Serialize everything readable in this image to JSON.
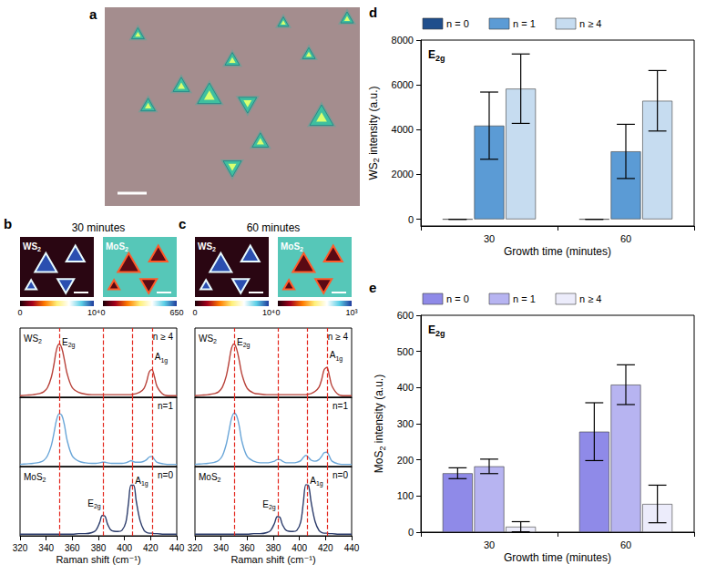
{
  "chart_data": [
    {
      "panel": "a",
      "type": "image"
    },
    {
      "panel": "b",
      "type": "line",
      "title": "30 minutes",
      "maps": [
        {
          "label": "WS2",
          "colorbar": {
            "range": [
              0,
              10000
            ],
            "ticks": [
              0,
              {
                "value": 10000,
                "label": "10⁴"
              }
            ]
          }
        },
        {
          "label": "MoS2",
          "colorbar": {
            "range": [
              0,
              650
            ],
            "ticks": [
              0,
              650
            ]
          }
        }
      ],
      "x_label": "Raman shift (cm⁻¹)",
      "xlim": [
        320,
        440
      ],
      "xticks": [
        320,
        340,
        360,
        380,
        400,
        420,
        440
      ],
      "ylim": [
        0,
        1.3
      ],
      "tick_labels": "x",
      "peak_lines": [
        350,
        384,
        406,
        421
      ],
      "x": [
        320,
        325,
        330,
        335,
        338,
        341,
        344,
        346,
        348,
        350,
        352,
        354,
        356,
        360,
        365,
        370,
        375,
        378,
        381,
        383,
        385,
        387,
        390,
        395,
        398,
        401,
        403,
        405,
        407,
        409,
        412,
        415,
        417,
        419,
        421,
        423,
        425,
        430,
        435,
        440
      ],
      "series": [
        {
          "name": "n ≥ 4",
          "material": "WS2",
          "color": "#b8423a",
          "values": [
            0.03,
            0.04,
            0.05,
            0.07,
            0.1,
            0.18,
            0.38,
            0.62,
            0.9,
            1.0,
            0.92,
            0.7,
            0.45,
            0.18,
            0.09,
            0.06,
            0.05,
            0.05,
            0.05,
            0.05,
            0.05,
            0.05,
            0.05,
            0.05,
            0.05,
            0.05,
            0.05,
            0.05,
            0.06,
            0.07,
            0.1,
            0.17,
            0.3,
            0.48,
            0.52,
            0.38,
            0.2,
            0.05,
            0.03,
            0.03
          ],
          "annotations": [
            {
              "text": "E2g",
              "x": 350
            },
            {
              "text": "A1g",
              "x": 421
            }
          ]
        },
        {
          "name": "n=1",
          "color": "#6aa6d8",
          "values": [
            0.04,
            0.05,
            0.06,
            0.08,
            0.11,
            0.2,
            0.4,
            0.63,
            0.88,
            0.99,
            0.96,
            0.78,
            0.5,
            0.2,
            0.1,
            0.07,
            0.06,
            0.06,
            0.07,
            0.08,
            0.08,
            0.07,
            0.06,
            0.06,
            0.06,
            0.07,
            0.09,
            0.11,
            0.09,
            0.08,
            0.08,
            0.1,
            0.13,
            0.18,
            0.19,
            0.13,
            0.08,
            0.05,
            0.04,
            0.04
          ]
        },
        {
          "name": "n=0",
          "material": "MoS2",
          "color": "#2c3c6b",
          "values": [
            0.03,
            0.03,
            0.03,
            0.03,
            0.03,
            0.03,
            0.03,
            0.03,
            0.03,
            0.03,
            0.03,
            0.03,
            0.03,
            0.03,
            0.04,
            0.04,
            0.06,
            0.1,
            0.25,
            0.38,
            0.37,
            0.22,
            0.1,
            0.08,
            0.1,
            0.25,
            0.6,
            0.95,
            0.95,
            0.65,
            0.28,
            0.1,
            0.06,
            0.05,
            0.05,
            0.04,
            0.04,
            0.03,
            0.03,
            0.03
          ],
          "annotations": [
            {
              "text": "E2g",
              "x": 384
            },
            {
              "text": "A1g",
              "x": 406
            }
          ]
        }
      ]
    },
    {
      "panel": "c",
      "type": "line",
      "title": "60 minutes",
      "maps": [
        {
          "label": "WS2",
          "colorbar": {
            "range": [
              0,
              10000
            ],
            "ticks": [
              0,
              {
                "value": 10000,
                "label": "10⁴"
              }
            ]
          }
        },
        {
          "label": "MoS2",
          "colorbar": {
            "range": [
              0,
              1000
            ],
            "ticks": [
              0,
              {
                "value": 1000,
                "label": "10³"
              }
            ]
          }
        }
      ],
      "x_label": "Raman shift (cm⁻¹)",
      "xlim": [
        320,
        440
      ],
      "xticks": [
        320,
        340,
        360,
        380,
        400,
        420,
        440
      ],
      "ylim": [
        0,
        1.3
      ],
      "tick_labels": "x",
      "peak_lines": [
        350,
        384,
        406,
        421
      ],
      "x": [
        320,
        325,
        330,
        335,
        338,
        341,
        344,
        346,
        348,
        350,
        352,
        354,
        356,
        360,
        365,
        370,
        375,
        378,
        381,
        383,
        385,
        387,
        390,
        395,
        398,
        401,
        403,
        405,
        407,
        409,
        412,
        415,
        417,
        419,
        421,
        423,
        425,
        430,
        435,
        440
      ],
      "series": [
        {
          "name": "n ≥ 4",
          "material": "WS2",
          "color": "#b8423a",
          "values": [
            0.03,
            0.04,
            0.05,
            0.07,
            0.1,
            0.19,
            0.4,
            0.65,
            0.92,
            1.0,
            0.9,
            0.68,
            0.43,
            0.17,
            0.08,
            0.06,
            0.05,
            0.05,
            0.05,
            0.05,
            0.05,
            0.05,
            0.05,
            0.05,
            0.05,
            0.05,
            0.05,
            0.05,
            0.06,
            0.07,
            0.11,
            0.19,
            0.33,
            0.52,
            0.56,
            0.4,
            0.21,
            0.05,
            0.03,
            0.03
          ],
          "annotations": [
            {
              "text": "E2g",
              "x": 350
            },
            {
              "text": "A1g",
              "x": 421
            }
          ]
        },
        {
          "name": "n=1",
          "color": "#6aa6d8",
          "values": [
            0.04,
            0.05,
            0.06,
            0.08,
            0.11,
            0.2,
            0.42,
            0.66,
            0.9,
            1.0,
            0.95,
            0.75,
            0.47,
            0.19,
            0.1,
            0.07,
            0.07,
            0.08,
            0.1,
            0.13,
            0.13,
            0.1,
            0.07,
            0.07,
            0.08,
            0.11,
            0.17,
            0.21,
            0.17,
            0.12,
            0.1,
            0.13,
            0.19,
            0.26,
            0.27,
            0.19,
            0.1,
            0.05,
            0.04,
            0.04
          ]
        },
        {
          "name": "n=0",
          "material": "MoS2",
          "color": "#2c3c6b",
          "values": [
            0.03,
            0.03,
            0.03,
            0.03,
            0.03,
            0.03,
            0.03,
            0.03,
            0.03,
            0.03,
            0.03,
            0.03,
            0.03,
            0.03,
            0.04,
            0.04,
            0.06,
            0.1,
            0.24,
            0.36,
            0.35,
            0.21,
            0.1,
            0.08,
            0.1,
            0.26,
            0.62,
            0.96,
            0.94,
            0.63,
            0.27,
            0.1,
            0.06,
            0.05,
            0.05,
            0.04,
            0.04,
            0.03,
            0.03,
            0.03
          ],
          "annotations": [
            {
              "text": "E2g",
              "x": 384
            },
            {
              "text": "A1g",
              "x": 406
            }
          ]
        }
      ]
    },
    {
      "panel": "d",
      "type": "bar",
      "title": "E2g",
      "categories": [
        "30",
        "60"
      ],
      "x_label": "Growth time (minutes)",
      "y_label": "WS2 intensity (a.u.)",
      "ylim": [
        -300,
        8000
      ],
      "yticks": [
        0,
        2000,
        4000,
        6000,
        8000
      ],
      "legend": "top",
      "series": [
        {
          "name": "n = 0",
          "color": "#1f4e8c",
          "values": [
            0,
            0
          ],
          "errors": [
            0,
            0
          ]
        },
        {
          "name": "n = 1",
          "color": "#5b9bd5",
          "values": [
            4180,
            3030
          ],
          "errors": [
            1500,
            1210
          ]
        },
        {
          "name": "n ≥ 4",
          "color": "#c6dcf0",
          "values": [
            5830,
            5290
          ],
          "errors": [
            1550,
            1350
          ]
        }
      ]
    },
    {
      "panel": "e",
      "type": "bar",
      "title": "E2g",
      "categories": [
        "30",
        "60"
      ],
      "x_label": "Growth time (minutes)",
      "y_label": "MoS2 intensity (a.u.)",
      "ylim": [
        0,
        600
      ],
      "yticks": [
        0,
        100,
        200,
        300,
        400,
        500,
        600
      ],
      "legend": "top",
      "series": [
        {
          "name": "n = 0",
          "color": "#8f8ae8",
          "values": [
            163,
            278
          ],
          "errors": [
            15,
            80
          ]
        },
        {
          "name": "n = 1",
          "color": "#b7b4f1",
          "values": [
            182,
            408
          ],
          "errors": [
            20,
            55
          ]
        },
        {
          "name": "n ≥ 4",
          "color": "#ececfb",
          "values": [
            15,
            78
          ],
          "errors": [
            14,
            52
          ]
        }
      ]
    }
  ]
}
